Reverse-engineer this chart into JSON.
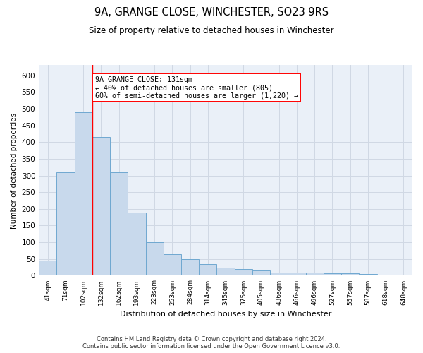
{
  "title": "9A, GRANGE CLOSE, WINCHESTER, SO23 9RS",
  "subtitle": "Size of property relative to detached houses in Winchester",
  "xlabel": "Distribution of detached houses by size in Winchester",
  "ylabel": "Number of detached properties",
  "categories": [
    "41sqm",
    "71sqm",
    "102sqm",
    "132sqm",
    "162sqm",
    "193sqm",
    "223sqm",
    "253sqm",
    "284sqm",
    "314sqm",
    "345sqm",
    "375sqm",
    "405sqm",
    "436sqm",
    "466sqm",
    "496sqm",
    "527sqm",
    "557sqm",
    "587sqm",
    "618sqm",
    "648sqm"
  ],
  "values": [
    45,
    310,
    490,
    415,
    310,
    190,
    100,
    65,
    50,
    35,
    25,
    20,
    15,
    10,
    10,
    10,
    8,
    7,
    5,
    4,
    3
  ],
  "bar_color": "#c8d9ec",
  "bar_edge_color": "#6fa8d0",
  "red_line_index": 2.5,
  "annotation_line1": "9A GRANGE CLOSE: 131sqm",
  "annotation_line2": "← 40% of detached houses are smaller (805)",
  "annotation_line3": "60% of semi-detached houses are larger (1,220) →",
  "ylim": [
    0,
    630
  ],
  "yticks": [
    0,
    50,
    100,
    150,
    200,
    250,
    300,
    350,
    400,
    450,
    500,
    550,
    600
  ],
  "plot_bg_color": "#eaf0f8",
  "grid_color": "#d0d8e4",
  "footnote1": "Contains HM Land Registry data © Crown copyright and database right 2024.",
  "footnote2": "Contains public sector information licensed under the Open Government Licence v3.0."
}
